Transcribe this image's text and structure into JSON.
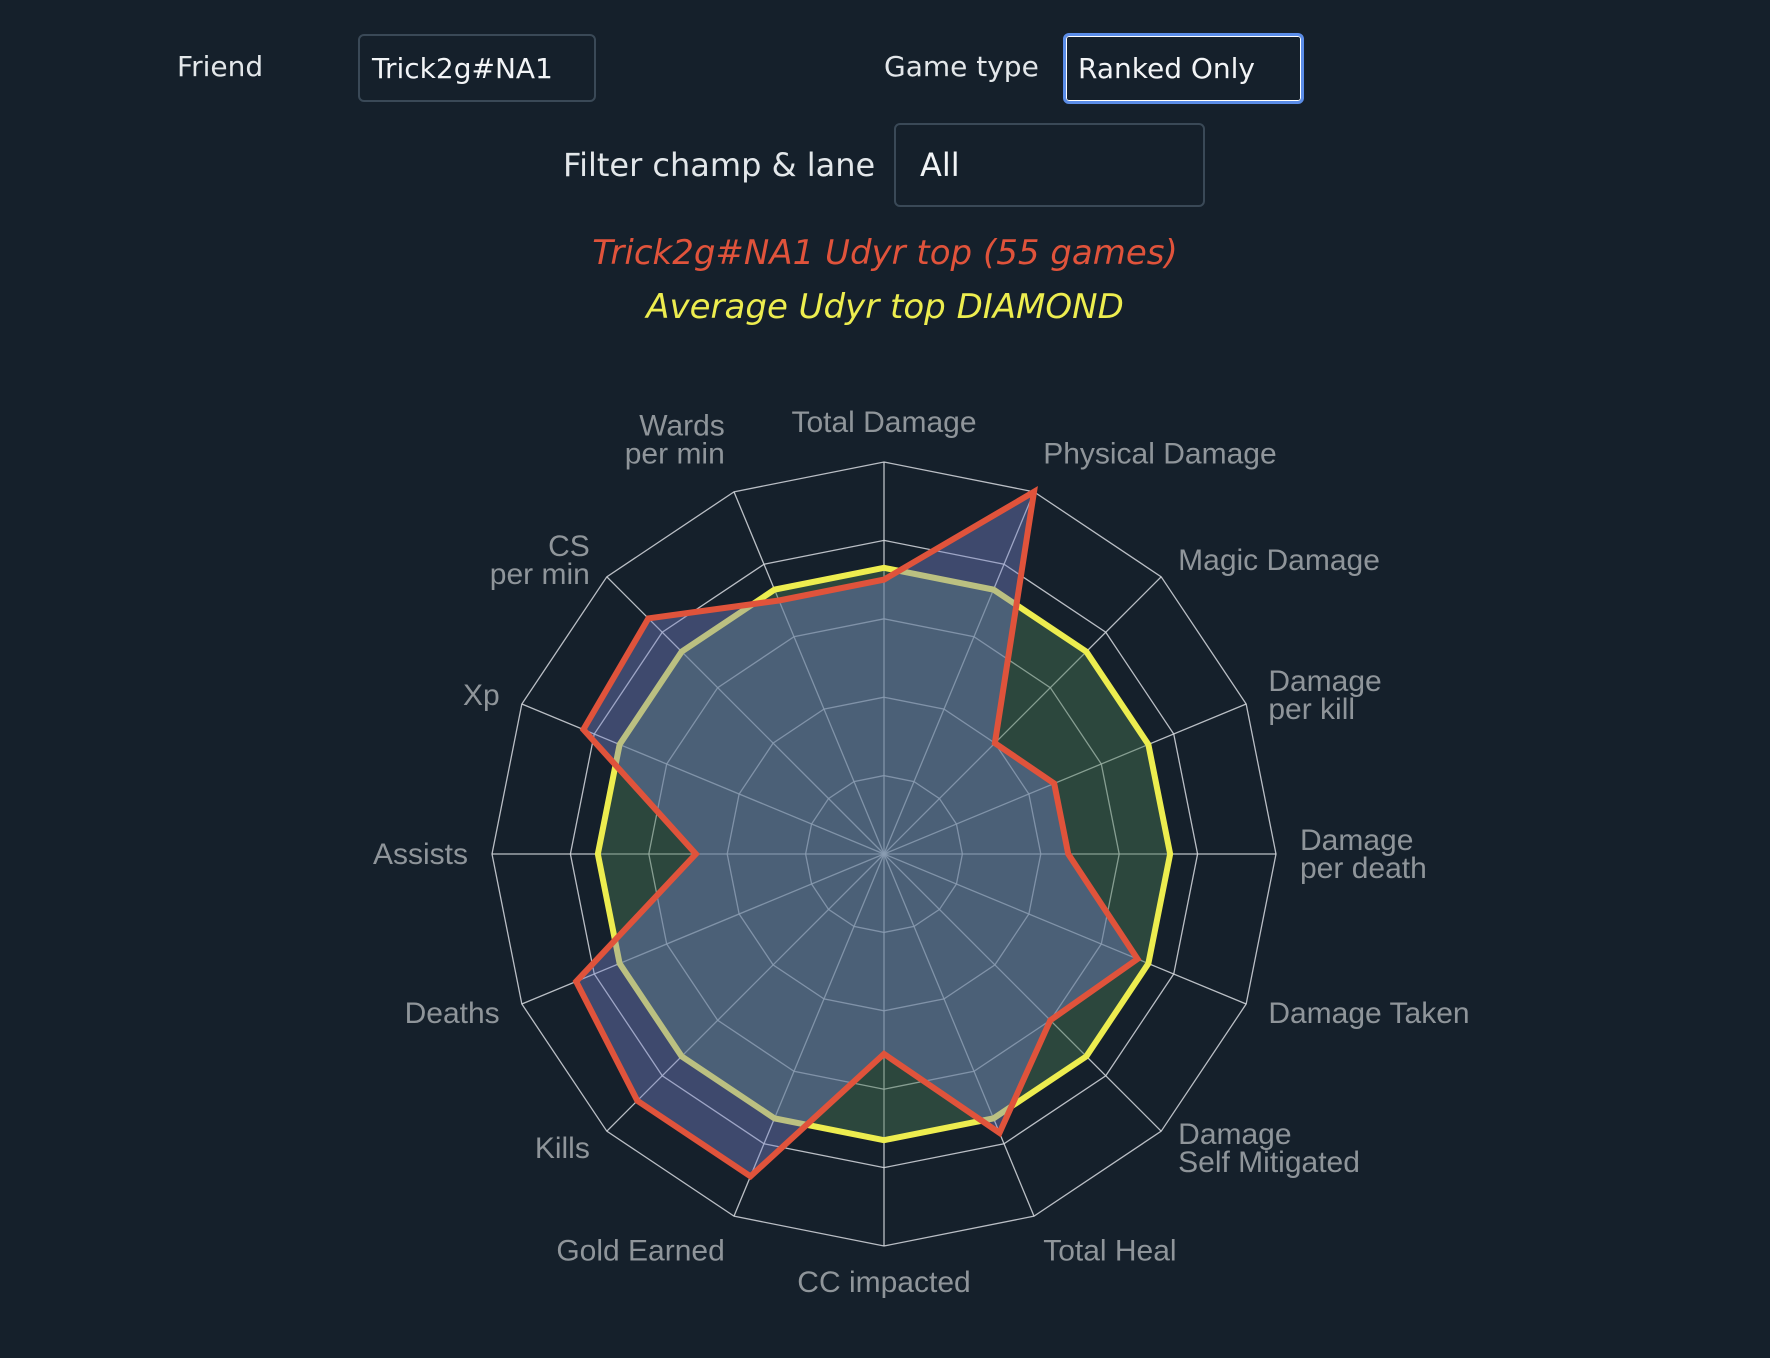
{
  "filters": {
    "friend_label": "Friend",
    "friend_value": "Trick2g#NA1",
    "game_type_label": "Game type",
    "game_type_value": "Ranked Only",
    "champ_lane_label": "Filter champ & lane",
    "champ_lane_value": "All"
  },
  "legend": {
    "player_series": "Trick2g#NA1 Udyr top (55 games)",
    "average_series": "Average Udyr top DIAMOND"
  },
  "colors": {
    "background": "#15202b",
    "player": "#e0533b",
    "average": "#eded4f",
    "grid": "#d7dbe0",
    "axis_label": "#8f959a"
  },
  "chart_data": {
    "type": "radar",
    "axes": [
      "Total Damage",
      "Physical Damage",
      "Magic Damage",
      "Damage per kill",
      "Damage per death",
      "Damage Taken",
      "Damage Self Mitigated",
      "Total Heal",
      "CC impacted",
      "Gold Earned",
      "Kills",
      "Deaths",
      "Assists",
      "Xp",
      "CS per min",
      "Wards per min"
    ],
    "axis_labels": [
      [
        "Total Damage"
      ],
      [
        "Physical Damage"
      ],
      [
        "Magic Damage"
      ],
      [
        "Damage",
        "per kill"
      ],
      [
        "Damage",
        "per death"
      ],
      [
        "Damage Taken"
      ],
      [
        "Damage",
        "Self Mitigated"
      ],
      [
        "Total Heal"
      ],
      [
        "CC impacted"
      ],
      [
        "Gold Earned"
      ],
      [
        "Kills"
      ],
      [
        "Deaths"
      ],
      [
        "Assists"
      ],
      [
        "Xp"
      ],
      [
        "CS",
        "per min"
      ],
      [
        "Wards",
        "per min"
      ]
    ],
    "rings": 5,
    "r_range": [
      0,
      1
    ],
    "series": [
      {
        "name": "Average Udyr top DIAMOND",
        "values": [
          0.73,
          0.73,
          0.73,
          0.73,
          0.73,
          0.73,
          0.73,
          0.73,
          0.73,
          0.73,
          0.73,
          0.73,
          0.73,
          0.73,
          0.73,
          0.73
        ]
      },
      {
        "name": "Trick2g#NA1 Udyr top (55 games)",
        "values": [
          0.7,
          1.0,
          0.4,
          0.47,
          0.47,
          0.7,
          0.6,
          0.77,
          0.51,
          0.89,
          0.89,
          0.85,
          0.48,
          0.83,
          0.85,
          0.7
        ]
      }
    ]
  }
}
